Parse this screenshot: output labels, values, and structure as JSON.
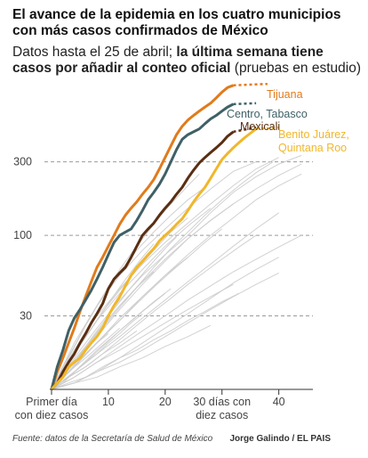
{
  "header": {
    "title": "El avance de la epidemia en los cuatro municipios con más casos confirmados de México",
    "subtitle_plain_1": "Datos hasta el 25 de abril; ",
    "subtitle_bold": "la última semana tiene casos por añadir al conteo oficial",
    "subtitle_plain_2": " (pruebas en estudio)"
  },
  "footer": {
    "source": "Fuente: datos de la Secretaría de Salud de México",
    "credit": "Jorge Galindo / EL PAIS"
  },
  "chart_data": {
    "type": "line",
    "y_scale": "log",
    "ylim": [
      10,
      950
    ],
    "xlim": [
      0,
      46
    ],
    "y_ticks": [
      {
        "value": 30,
        "label": "30"
      },
      {
        "value": 100,
        "label": "100"
      },
      {
        "value": 300,
        "label": "300"
      }
    ],
    "x_ticks": [
      {
        "value": 0,
        "lines": [
          "Primer día",
          "con diez casos"
        ]
      },
      {
        "value": 10,
        "lines": [
          "10"
        ]
      },
      {
        "value": 20,
        "lines": [
          "20"
        ]
      },
      {
        "value": 30,
        "lines": [
          "30 días con",
          "diez casos"
        ]
      },
      {
        "value": 40,
        "lines": [
          "40"
        ]
      }
    ],
    "grid": "dashed horizontal at y ticks",
    "colors": {
      "tijuana": "#e07b1c",
      "centro": "#3f6066",
      "mexicali": "#5a2e12",
      "benito": "#f0b72a",
      "background_lines": "#cccccc"
    },
    "series": [
      {
        "name": "Tijuana",
        "key": "tijuana",
        "x": [
          0,
          1,
          2,
          3,
          4,
          5,
          6,
          7,
          8,
          9,
          10,
          11,
          12,
          13,
          14,
          15,
          16,
          17,
          18,
          19,
          20,
          21,
          22,
          23,
          24,
          25,
          26,
          27,
          28,
          29,
          30,
          31,
          32
        ],
        "values": [
          10,
          13,
          16,
          20,
          25,
          32,
          40,
          50,
          62,
          72,
          85,
          100,
          118,
          135,
          150,
          165,
          185,
          205,
          230,
          270,
          320,
          380,
          450,
          510,
          560,
          600,
          640,
          680,
          720,
          780,
          850,
          910,
          940
        ],
        "provisional_from_x": 32,
        "provisional_to_x": 38,
        "provisional_value": 960
      },
      {
        "name": "Centro, Tabasco",
        "key": "centro",
        "x": [
          0,
          1,
          2,
          3,
          4,
          5,
          6,
          7,
          8,
          9,
          10,
          11,
          12,
          13,
          14,
          15,
          16,
          17,
          18,
          19,
          20,
          21,
          22,
          23,
          24,
          25,
          26,
          27,
          28,
          29,
          30,
          31,
          32
        ],
        "values": [
          10,
          14,
          18,
          24,
          29,
          33,
          38,
          44,
          52,
          62,
          75,
          90,
          100,
          105,
          110,
          125,
          145,
          170,
          190,
          215,
          250,
          300,
          360,
          420,
          450,
          470,
          490,
          530,
          570,
          600,
          640,
          680,
          710
        ],
        "provisional_from_x": 32,
        "provisional_to_x": 36,
        "provisional_value": 720
      },
      {
        "name": "Mexicali",
        "key": "mexicali",
        "x": [
          0,
          1,
          2,
          3,
          4,
          5,
          6,
          7,
          8,
          9,
          10,
          11,
          12,
          13,
          14,
          15,
          16,
          17,
          18,
          19,
          20,
          21,
          22,
          23,
          24,
          25,
          26,
          27,
          28,
          29,
          30,
          31,
          32
        ],
        "values": [
          10,
          11,
          13,
          15,
          17,
          20,
          23,
          27,
          31,
          36,
          45,
          52,
          57,
          62,
          72,
          85,
          100,
          110,
          120,
          135,
          150,
          165,
          185,
          205,
          235,
          265,
          295,
          320,
          345,
          370,
          400,
          440,
          470
        ],
        "provisional_from_x": 32,
        "provisional_to_x": 36,
        "provisional_value": 500
      },
      {
        "name": "Benito Juárez, Quintana Roo",
        "key": "benito",
        "x": [
          0,
          1,
          2,
          3,
          4,
          5,
          6,
          7,
          8,
          9,
          10,
          11,
          12,
          13,
          14,
          15,
          16,
          17,
          18,
          19,
          20,
          21,
          22,
          23,
          24,
          25,
          26,
          27,
          28,
          29,
          30,
          31,
          32,
          33,
          34,
          35,
          36
        ],
        "values": [
          10,
          11,
          12,
          14,
          15,
          16,
          18,
          20,
          22,
          25,
          30,
          35,
          40,
          47,
          55,
          62,
          68,
          75,
          82,
          92,
          100,
          108,
          118,
          128,
          145,
          165,
          185,
          205,
          235,
          270,
          310,
          340,
          370,
          400,
          430,
          460,
          490
        ],
        "provisional_from_x": 36,
        "provisional_to_x": 40,
        "provisional_value": 500
      }
    ],
    "background_series": [
      {
        "x": [
          0,
          4,
          8,
          12,
          16,
          20,
          24,
          28,
          32,
          36,
          40,
          44
        ],
        "values": [
          10,
          16,
          25,
          38,
          55,
          75,
          100,
          140,
          190,
          240,
          290,
          330
        ]
      },
      {
        "x": [
          0,
          4,
          8,
          12,
          16,
          20,
          24,
          28,
          32,
          36,
          40,
          44
        ],
        "values": [
          10,
          14,
          20,
          28,
          40,
          55,
          75,
          100,
          130,
          170,
          210,
          250
        ]
      },
      {
        "x": [
          0,
          4,
          8,
          12,
          16,
          20,
          24,
          28,
          32,
          36,
          40
        ],
        "values": [
          10,
          18,
          30,
          45,
          65,
          90,
          120,
          160,
          210,
          270,
          320
        ]
      },
      {
        "x": [
          0,
          4,
          8,
          12,
          16,
          20,
          24,
          28,
          32,
          36
        ],
        "values": [
          10,
          20,
          35,
          55,
          80,
          110,
          150,
          200,
          260,
          300
        ]
      },
      {
        "x": [
          0,
          4,
          8,
          12,
          16,
          20,
          24,
          28,
          32,
          36,
          40,
          44
        ],
        "values": [
          10,
          12,
          15,
          19,
          24,
          30,
          38,
          47,
          58,
          70,
          84,
          100
        ]
      },
      {
        "x": [
          0,
          4,
          8,
          12,
          16,
          20,
          24,
          28,
          32
        ],
        "values": [
          10,
          15,
          22,
          33,
          48,
          68,
          95,
          125,
          160
        ]
      },
      {
        "x": [
          0,
          4,
          8,
          12,
          16,
          20,
          24,
          28
        ],
        "values": [
          10,
          17,
          28,
          42,
          60,
          85,
          115,
          150
        ]
      },
      {
        "x": [
          0,
          4,
          8,
          12,
          16,
          20,
          24
        ],
        "values": [
          10,
          14,
          20,
          29,
          40,
          55,
          72
        ]
      },
      {
        "x": [
          0,
          4,
          8,
          12,
          16,
          20,
          24,
          28,
          32,
          36,
          40
        ],
        "values": [
          10,
          13,
          17,
          22,
          29,
          38,
          50,
          65,
          85,
          110,
          140
        ]
      },
      {
        "x": [
          0,
          4,
          8,
          12,
          16,
          20
        ],
        "values": [
          10,
          13,
          18,
          24,
          32,
          42
        ]
      },
      {
        "x": [
          0,
          4,
          8,
          12,
          16,
          20,
          24,
          28,
          32,
          36,
          40
        ],
        "values": [
          10,
          11,
          13,
          16,
          20,
          25,
          31,
          39,
          49,
          60,
          72
        ]
      },
      {
        "x": [
          0,
          4,
          8,
          12,
          16,
          20,
          24,
          28,
          32
        ],
        "values": [
          10,
          12,
          15,
          18,
          22,
          27,
          33,
          40,
          48
        ]
      },
      {
        "x": [
          0,
          4,
          8,
          12,
          16,
          20,
          24,
          28
        ],
        "values": [
          10,
          11,
          12,
          14,
          16,
          19,
          22,
          26
        ]
      },
      {
        "x": [
          0,
          3,
          6,
          9,
          12,
          15,
          18,
          21,
          24,
          27,
          30
        ],
        "values": [
          10,
          13,
          17,
          22,
          28,
          36,
          46,
          58,
          72,
          90,
          110
        ]
      },
      {
        "x": [
          0,
          3,
          6,
          9,
          12,
          15,
          18,
          21,
          24
        ],
        "values": [
          10,
          15,
          22,
          32,
          44,
          60,
          80,
          105,
          130
        ]
      },
      {
        "x": [
          0,
          3,
          6,
          9,
          12,
          15,
          18,
          21
        ],
        "values": [
          10,
          12,
          15,
          19,
          24,
          30,
          37,
          45
        ]
      },
      {
        "x": [
          0,
          3,
          6,
          9,
          12,
          15,
          18
        ],
        "values": [
          10,
          14,
          19,
          26,
          35,
          46,
          58
        ]
      },
      {
        "x": [
          0,
          3,
          6,
          9,
          12,
          15
        ],
        "values": [
          10,
          12,
          14,
          17,
          20,
          24
        ]
      },
      {
        "x": [
          0,
          3,
          6,
          9,
          12
        ],
        "values": [
          10,
          13,
          16,
          20,
          25
        ]
      },
      {
        "x": [
          0,
          3,
          6,
          9,
          12,
          15,
          18,
          21,
          24,
          27
        ],
        "values": [
          10,
          16,
          26,
          40,
          58,
          80,
          105,
          135,
          170,
          205
        ]
      },
      {
        "x": [
          0,
          3,
          6,
          9,
          12,
          15,
          18,
          21,
          24,
          27,
          30,
          33
        ],
        "values": [
          10,
          11,
          12,
          14,
          16,
          18,
          21,
          24,
          28,
          32,
          37,
          42
        ]
      },
      {
        "x": [
          0,
          3,
          6,
          9,
          12,
          15,
          18,
          21,
          24,
          27,
          30,
          33,
          36
        ],
        "values": [
          10,
          12,
          14,
          17,
          21,
          26,
          32,
          39,
          48,
          58,
          70,
          84,
          100
        ]
      },
      {
        "x": [
          0,
          3,
          6,
          9,
          12,
          15,
          18,
          21,
          24,
          27,
          30,
          33,
          36,
          39
        ],
        "values": [
          10,
          13,
          18,
          25,
          34,
          46,
          62,
          82,
          105,
          135,
          170,
          210,
          255,
          300
        ]
      },
      {
        "x": [
          0,
          2,
          4,
          6,
          8,
          10,
          12,
          14,
          16,
          18,
          20,
          22
        ],
        "values": [
          10,
          12,
          15,
          19,
          24,
          30,
          37,
          46,
          56,
          68,
          82,
          98
        ]
      },
      {
        "x": [
          0,
          2,
          4,
          6,
          8,
          10,
          12,
          14,
          16
        ],
        "values": [
          10,
          11,
          13,
          15,
          17,
          20,
          23,
          27,
          31
        ]
      },
      {
        "x": [
          0,
          2,
          4,
          6,
          8,
          10
        ],
        "values": [
          10,
          12,
          14,
          17,
          20,
          23
        ]
      },
      {
        "x": [
          0,
          2,
          4,
          6,
          8,
          10,
          12,
          14,
          16,
          18,
          20,
          22,
          24,
          26
        ],
        "values": [
          10,
          14,
          19,
          26,
          35,
          46,
          60,
          76,
          95,
          118,
          145,
          175,
          210,
          250
        ]
      },
      {
        "x": [
          0,
          2,
          4,
          6,
          8,
          10,
          12,
          14,
          16,
          18
        ],
        "values": [
          10,
          13,
          17,
          22,
          28,
          36,
          46,
          58,
          72,
          88
        ]
      },
      {
        "x": [
          0,
          4,
          8,
          12,
          16,
          20,
          24,
          28,
          32,
          36,
          40,
          44
        ],
        "values": [
          10,
          15,
          23,
          35,
          50,
          70,
          95,
          125,
          160,
          200,
          245,
          290
        ]
      },
      {
        "x": [
          0,
          4,
          8,
          12,
          16,
          20,
          24,
          28,
          32,
          36,
          40
        ],
        "values": [
          10,
          11,
          13,
          15,
          18,
          22,
          27,
          33,
          40,
          48,
          57
        ]
      }
    ]
  }
}
